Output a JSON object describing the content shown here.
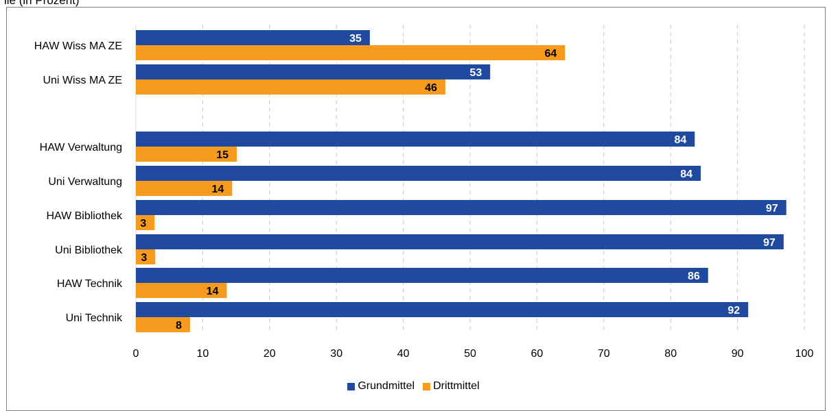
{
  "header_fragment": "ile (in Prozent)",
  "colors": {
    "grundmittel": "#1f4aa0",
    "drittmittel": "#f79b1e",
    "grid": "#c8c8c8",
    "frame": "#7f7f7f"
  },
  "chart_data": {
    "type": "bar",
    "orientation": "horizontal",
    "categories": [
      "HAW Wiss MA ZE",
      "Uni Wiss MA ZE",
      "",
      "HAW Verwaltung",
      "Uni Verwaltung",
      "HAW Bibliothek",
      "Uni Bibliothek",
      "HAW Technik",
      "Uni Technik"
    ],
    "series": [
      {
        "name": "Grundmittel",
        "values": [
          35,
          53,
          null,
          84,
          84,
          97,
          97,
          86,
          92
        ],
        "display_values": [
          35,
          53,
          null,
          83.6,
          84.5,
          97.3,
          96.9,
          85.6,
          91.6
        ]
      },
      {
        "name": "Drittmittel",
        "values": [
          64,
          46,
          null,
          15,
          14,
          3,
          3,
          14,
          8
        ],
        "display_values": [
          64.2,
          46.3,
          null,
          15.1,
          14.4,
          2.8,
          2.9,
          13.6,
          8.1
        ]
      }
    ],
    "xlim": [
      0,
      100
    ],
    "x_ticks": [
      "0",
      "10",
      "20",
      "30",
      "40",
      "50",
      "60",
      "70",
      "80",
      "90",
      "100"
    ],
    "grid": true,
    "legend_position": "bottom"
  }
}
